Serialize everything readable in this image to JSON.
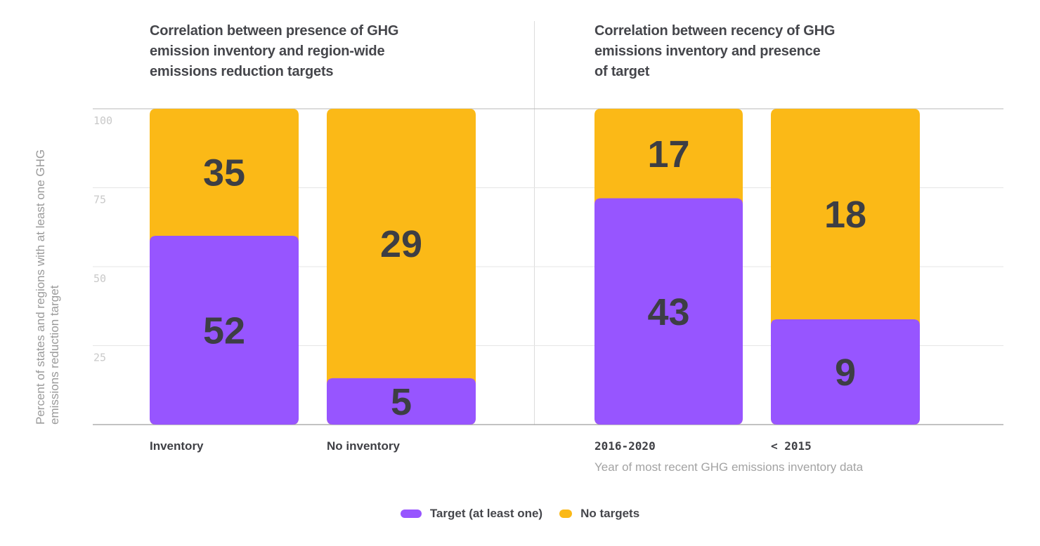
{
  "colors": {
    "target": "#9755ff",
    "no_target": "#fbb917",
    "grid": "#e6e6e6",
    "axis": "#9e9e9e"
  },
  "y_axis_label": "Percent of states and regions with at least one GHG\nemissions reduction target",
  "legend": [
    {
      "key": "target",
      "label": "Target (at least one)"
    },
    {
      "key": "no_target",
      "label": "No targets"
    }
  ],
  "chart_data": [
    {
      "type": "bar",
      "stacked": true,
      "normalized_percent": true,
      "title": "Correlation between presence of GHG\nemission inventory and region-wide\nemissions reduction targets",
      "xlabel": "",
      "ylabel": "Percent of states and regions with at least one GHG emissions reduction target",
      "ylim": [
        0,
        100
      ],
      "yticks": [
        25,
        50,
        75,
        100
      ],
      "grid": true,
      "categories": [
        "Inventory",
        "No inventory"
      ],
      "series": [
        {
          "name": "Target (at least one)",
          "key": "target",
          "values": [
            52,
            5
          ]
        },
        {
          "name": "No targets",
          "key": "no_target",
          "values": [
            35,
            29
          ]
        }
      ],
      "legend_position": "bottom"
    },
    {
      "type": "bar",
      "stacked": true,
      "normalized_percent": true,
      "title": "Correlation between recency of GHG\nemissions inventory and presence\nof target",
      "xlabel": "Year of most recent GHG emissions inventory data",
      "ylabel": "Percent of states and regions with at least one GHG emissions reduction target",
      "ylim": [
        0,
        100
      ],
      "yticks": [
        25,
        50,
        75,
        100
      ],
      "grid": true,
      "categories": [
        "2016-2020",
        "< 2015"
      ],
      "series": [
        {
          "name": "Target (at least one)",
          "key": "target",
          "values": [
            43,
            9
          ]
        },
        {
          "name": "No targets",
          "key": "no_target",
          "values": [
            17,
            18
          ]
        }
      ],
      "legend_position": "bottom"
    }
  ]
}
